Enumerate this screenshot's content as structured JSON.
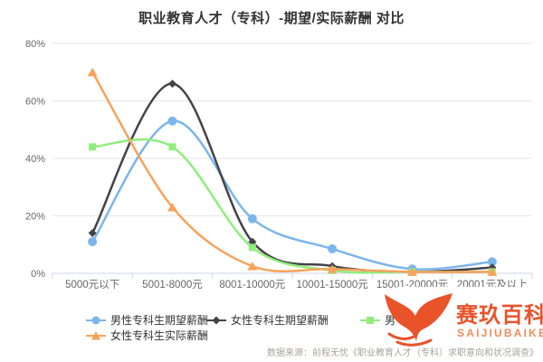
{
  "chart_data": {
    "type": "line",
    "line_style": "spline",
    "title": "职业教育人才（专科）-期望/实际薪酬 对比",
    "categories": [
      "5000元以下",
      "5001-8000元",
      "8001-10000元",
      "10001-15000元",
      "15001-20000元",
      "20001元及以上"
    ],
    "series": [
      {
        "name": "男性专科生期望薪酬",
        "color": "#7cb5ec",
        "marker": "circle",
        "values": [
          11,
          53,
          19,
          8.5,
          1.5,
          4
        ]
      },
      {
        "name": "女性专科生期望薪酬",
        "color": "#434348",
        "marker": "diamond",
        "values": [
          14,
          66,
          11,
          2.5,
          0.5,
          2
        ]
      },
      {
        "name": "男性专科生实际薪酬",
        "color": "#90ed7d",
        "marker": "square",
        "values": [
          44,
          44,
          9,
          1,
          0.5,
          0.5
        ]
      },
      {
        "name": "女性专科生实际薪酬",
        "color": "#f7a35c",
        "marker": "triangle",
        "values": [
          70,
          23,
          2.5,
          1.5,
          0.5,
          0.5
        ]
      }
    ],
    "xlabel": "",
    "ylabel": "",
    "ylim": [
      0,
      80
    ],
    "yticks": [
      0,
      20,
      40,
      60,
      80
    ],
    "ytick_labels": [
      "0%",
      "20%",
      "40%",
      "60%",
      "80%"
    ],
    "grid": true,
    "legend_position": "bottom"
  },
  "watermark": {
    "brand_cn": "赛玖百科",
    "brand_en": "SAIJIUBAIKE",
    "color": "#e8532a"
  },
  "source_note": "数据来源：前程无忧《职业教育人才（专科）求职意向和状况调查》"
}
